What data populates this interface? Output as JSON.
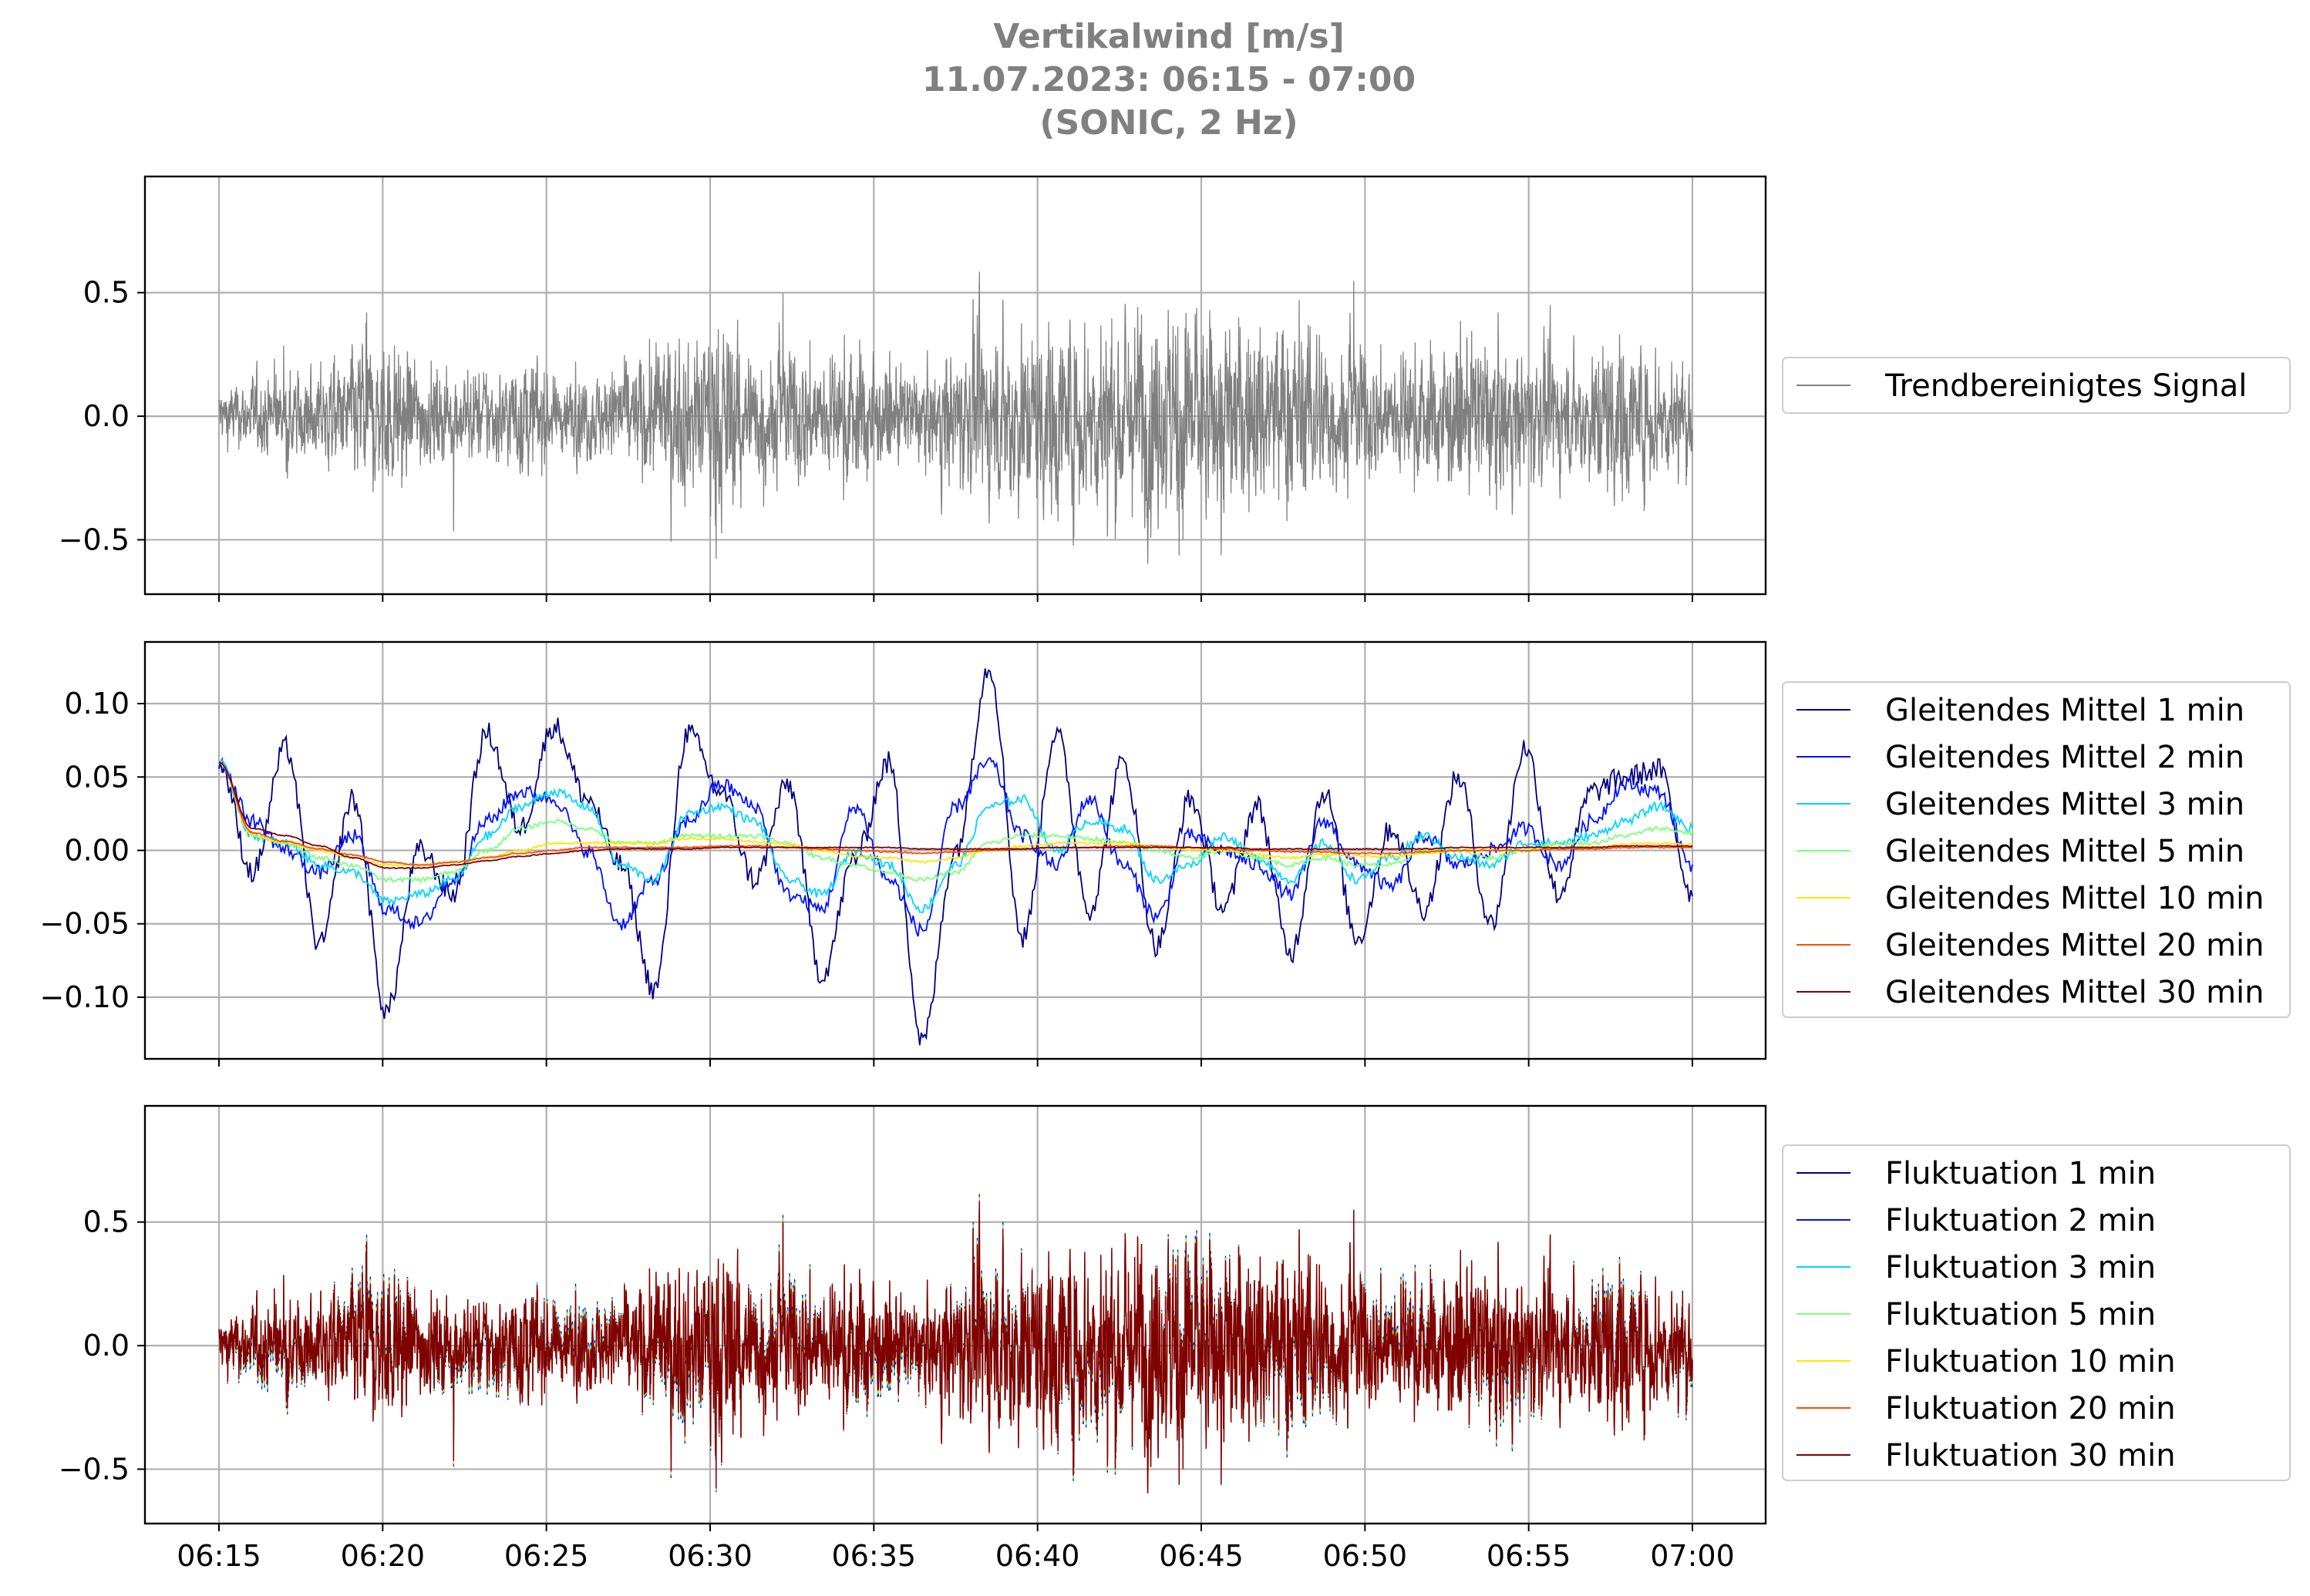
{
  "title": {
    "line1": "Vertikalwind [m/s]",
    "line2": "11.07.2023:  06:15 -  07:00",
    "line3": "(SONIC, 2 Hz)"
  },
  "x_tick_labels": [
    "06:15",
    "06:20",
    "06:25",
    "06:30",
    "06:35",
    "06:40",
    "06:45",
    "06:50",
    "06:55",
    "07:00"
  ],
  "chart_data": [
    {
      "type": "line",
      "panel": "top",
      "x_range": [
        "06:15",
        "07:00"
      ],
      "ylim": [
        -0.72,
        0.97
      ],
      "yticks": [
        -0.5,
        0.0,
        0.5
      ],
      "ytick_labels": [
        "−0.5",
        "0.0",
        "0.5"
      ],
      "grid": true,
      "legend_position": "right",
      "series": [
        {
          "name": "Trendbereinigtes Signal",
          "color": "#808080",
          "noise_amplitude_by_minute": [
            0.1,
            0.12,
            0.14,
            0.16,
            0.24,
            0.22,
            0.15,
            0.14,
            0.15,
            0.18,
            0.12,
            0.13,
            0.17,
            0.22,
            0.24,
            0.3,
            0.2,
            0.2,
            0.19,
            0.22,
            0.15,
            0.14,
            0.22,
            0.26,
            0.28,
            0.3,
            0.3,
            0.32,
            0.34,
            0.36,
            0.3,
            0.3,
            0.32,
            0.28,
            0.22,
            0.18,
            0.2,
            0.22,
            0.24,
            0.22,
            0.2,
            0.18,
            0.26,
            0.22,
            0.18
          ]
        }
      ]
    },
    {
      "type": "line",
      "panel": "middle",
      "x_range": [
        "06:15",
        "07:00"
      ],
      "ylim": [
        -0.142,
        0.142
      ],
      "yticks": [
        -0.1,
        -0.05,
        0.0,
        0.05,
        0.1
      ],
      "ytick_labels": [
        "−0.10",
        "−0.05",
        "0.00",
        "0.05",
        "0.10"
      ],
      "grid": true,
      "legend_position": "right",
      "series": [
        {
          "name": "Gleitendes Mittel 1 min",
          "color": "#00007f",
          "values": [
            0.06,
            -0.015,
            0.07,
            -0.065,
            0.035,
            -0.11,
            0.0,
            -0.03,
            0.08,
            0.015,
            0.085,
            0.035,
            -0.01,
            -0.095,
            0.08,
            0.04,
            -0.02,
            0.045,
            -0.085,
            -0.005,
            0.06,
            -0.13,
            0.0,
            0.125,
            -0.06,
            0.08,
            -0.04,
            0.06,
            -0.065,
            0.035,
            -0.04,
            0.03,
            -0.07,
            0.04,
            -0.06,
            0.015,
            -0.04,
            0.05,
            -0.05,
            0.07,
            -0.03,
            0.04,
            0.05,
            0.055,
            -0.03
          ]
        },
        {
          "name": "Gleitendes Mittel 2 min",
          "color": "#0010ff",
          "values": [
            0.06,
            0.02,
            0.0,
            -0.015,
            0.01,
            -0.04,
            -0.05,
            -0.02,
            0.02,
            0.04,
            0.035,
            0.0,
            -0.05,
            -0.02,
            0.02,
            0.045,
            0.03,
            -0.03,
            -0.04,
            0.03,
            -0.02,
            -0.055,
            0.03,
            0.06,
            0.01,
            -0.01,
            0.035,
            -0.01,
            -0.045,
            0.01,
            0.0,
            -0.01,
            -0.03,
            0.02,
            -0.01,
            -0.025,
            0.01,
            -0.01,
            0.0,
            0.015,
            -0.01,
            0.02,
            0.045,
            0.04,
            -0.01
          ]
        },
        {
          "name": "Gleitendes Mittel 3 min",
          "color": "#00d4ff",
          "values": [
            0.06,
            0.01,
            0.005,
            -0.01,
            -0.015,
            -0.035,
            -0.03,
            -0.02,
            0.01,
            0.03,
            0.04,
            0.03,
            -0.01,
            -0.02,
            0.025,
            0.03,
            0.02,
            -0.02,
            -0.03,
            0.0,
            -0.01,
            -0.04,
            -0.01,
            0.03,
            0.035,
            0.0,
            0.02,
            0.015,
            -0.02,
            -0.01,
            0.01,
            -0.005,
            -0.02,
            0.005,
            -0.02,
            -0.005,
            0.01,
            -0.005,
            -0.01,
            0.005,
            0.005,
            0.01,
            0.02,
            0.03,
            0.015
          ]
        },
        {
          "name": "Gleitendes Mittel 5 min",
          "color": "#7cff79",
          "values": [
            0.06,
            0.01,
            0.005,
            -0.005,
            -0.01,
            -0.02,
            -0.02,
            -0.015,
            0.0,
            0.015,
            0.02,
            0.015,
            0.005,
            0.005,
            0.01,
            0.01,
            0.01,
            0.005,
            -0.005,
            -0.01,
            -0.015,
            -0.02,
            -0.015,
            0.005,
            0.01,
            0.01,
            0.008,
            0.005,
            0.0,
            -0.005,
            0.0,
            -0.005,
            -0.01,
            -0.005,
            -0.01,
            -0.01,
            0.0,
            0.0,
            -0.005,
            0.0,
            0.005,
            0.005,
            0.01,
            0.015,
            0.012
          ]
        },
        {
          "name": "Gleitendes Mittel 10 min",
          "color": "#ffe600",
          "values": [
            0.06,
            0.01,
            0.005,
            0.0,
            -0.005,
            -0.01,
            -0.01,
            -0.008,
            -0.005,
            0.0,
            0.005,
            0.005,
            0.005,
            0.005,
            0.008,
            0.008,
            0.006,
            0.004,
            0.0,
            -0.004,
            -0.005,
            -0.008,
            -0.005,
            0.0,
            0.003,
            0.005,
            0.005,
            0.005,
            0.003,
            0.0,
            0.0,
            -0.003,
            -0.005,
            -0.003,
            -0.004,
            -0.004,
            -0.002,
            0.0,
            0.0,
            0.0,
            0.002,
            0.002,
            0.004,
            0.005,
            0.004
          ]
        },
        {
          "name": "Gleitendes Mittel 20 min",
          "color": "#ff4a00",
          "values": [
            0.06,
            0.012,
            0.006,
            0.001,
            -0.003,
            -0.008,
            -0.01,
            -0.008,
            -0.005,
            -0.002,
            0.0,
            0.002,
            0.002,
            0.002,
            0.002,
            0.003,
            0.003,
            0.002,
            0.001,
            0.0,
            -0.001,
            -0.002,
            -0.001,
            0.0,
            0.001,
            0.002,
            0.002,
            0.003,
            0.003,
            0.002,
            0.001,
            0.0,
            -0.001,
            -0.001,
            -0.002,
            -0.002,
            -0.001,
            0.0,
            0.0,
            0.0,
            0.001,
            0.001,
            0.002,
            0.002,
            0.002
          ]
        },
        {
          "name": "Gleitendes Mittel 30 min",
          "color": "#7f0000",
          "values": [
            0.06,
            0.015,
            0.01,
            0.003,
            -0.005,
            -0.012,
            -0.012,
            -0.01,
            -0.007,
            -0.004,
            -0.002,
            0.0,
            0.001,
            0.001,
            0.001,
            0.002,
            0.002,
            0.002,
            0.002,
            0.002,
            0.002,
            0.001,
            0.001,
            0.001,
            0.001,
            0.002,
            0.002,
            0.002,
            0.002,
            0.002,
            0.002,
            0.001,
            0.001,
            0.001,
            0.001,
            0.001,
            0.001,
            0.002,
            0.002,
            0.002,
            0.002,
            0.002,
            0.003,
            0.003,
            0.003
          ]
        }
      ]
    },
    {
      "type": "line",
      "panel": "bottom",
      "x_range": [
        "06:15",
        "07:00"
      ],
      "ylim": [
        -0.72,
        0.97
      ],
      "yticks": [
        -0.5,
        0.0,
        0.5
      ],
      "ytick_labels": [
        "−0.5",
        "0.0",
        "0.5"
      ],
      "grid": true,
      "legend_position": "right",
      "series": [
        {
          "name": "Fluktuation 1 min",
          "color": "#00007f"
        },
        {
          "name": "Fluktuation 2 min",
          "color": "#0010ff"
        },
        {
          "name": "Fluktuation 3 min",
          "color": "#00d4ff"
        },
        {
          "name": "Fluktuation 5 min",
          "color": "#7cff79"
        },
        {
          "name": "Fluktuation 10 min",
          "color": "#ffe600"
        },
        {
          "name": "Fluktuation 20 min",
          "color": "#ff4a00"
        },
        {
          "name": "Fluktuation 30 min",
          "color": "#7f0000"
        }
      ]
    }
  ]
}
